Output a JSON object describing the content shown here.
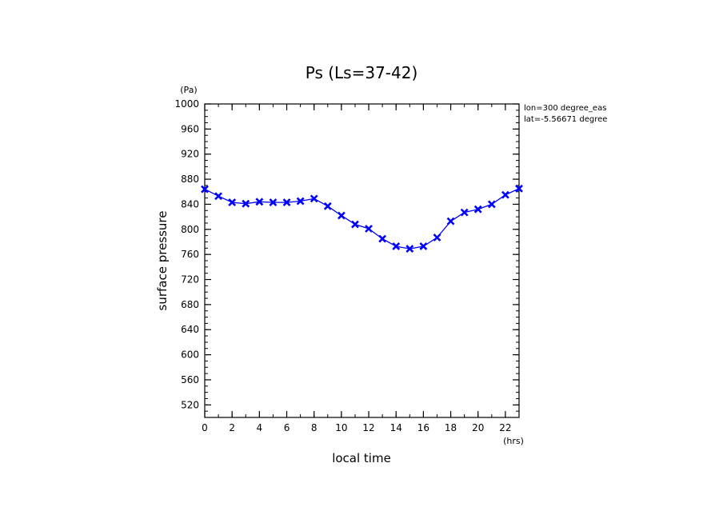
{
  "chart_data": {
    "type": "line",
    "title": "Ps (Ls=37-42)",
    "xlabel": "local time",
    "ylabel": "surface pressure",
    "x_unit": "(hrs)",
    "y_unit": "(Pa)",
    "xlim": [
      0,
      23
    ],
    "ylim": [
      500,
      1000
    ],
    "x_ticks": [
      "0",
      "2",
      "4",
      "6",
      "8",
      "10",
      "12",
      "14",
      "16",
      "18",
      "20",
      "22"
    ],
    "y_ticks": [
      "520",
      "560",
      "600",
      "640",
      "680",
      "720",
      "760",
      "800",
      "840",
      "880",
      "920",
      "960",
      "1000"
    ],
    "annotations": [
      "lon=300 degree_eas",
      "lat=-5.56671 degree"
    ],
    "grid": false,
    "color": "#0000ff",
    "series": [
      {
        "x": [
          0,
          1,
          2,
          3,
          4,
          5,
          6,
          7,
          8,
          9,
          10,
          11,
          12,
          13,
          14,
          15,
          16,
          17,
          18,
          19,
          20,
          21,
          22,
          23
        ],
        "values": [
          864,
          853,
          843,
          841,
          844,
          843,
          843,
          845,
          849,
          837,
          822,
          808,
          801,
          785,
          773,
          769,
          773,
          787,
          813,
          827,
          832,
          840,
          855,
          865
        ]
      }
    ]
  }
}
